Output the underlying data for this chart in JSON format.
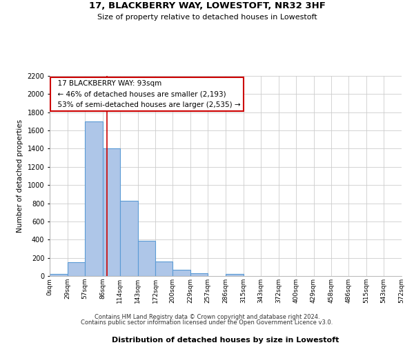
{
  "title_line1": "17, BLACKBERRY WAY, LOWESTOFT, NR32 3HF",
  "title_line2": "Size of property relative to detached houses in Lowestoft",
  "xlabel": "Distribution of detached houses by size in Lowestoft",
  "ylabel": "Number of detached properties",
  "annotation_line1": "17 BLACKBERRY WAY: 93sqm",
  "annotation_line2": "← 46% of detached houses are smaller (2,193)",
  "annotation_line3": "53% of semi-detached houses are larger (2,535) →",
  "property_size": 93,
  "bin_edges": [
    0,
    29,
    57,
    86,
    114,
    143,
    172,
    200,
    229,
    257,
    286,
    315,
    343,
    372,
    400,
    429,
    458,
    486,
    515,
    543,
    572
  ],
  "bar_heights": [
    20,
    155,
    1700,
    1400,
    830,
    385,
    160,
    65,
    30,
    0,
    25,
    0,
    0,
    0,
    0,
    0,
    0,
    0,
    0,
    0
  ],
  "bar_color": "#aec6e8",
  "bar_edge_color": "#5b9bd5",
  "vline_color": "#cc0000",
  "vline_x": 93,
  "ylim": [
    0,
    2200
  ],
  "yticks": [
    0,
    200,
    400,
    600,
    800,
    1000,
    1200,
    1400,
    1600,
    1800,
    2000,
    2200
  ],
  "xtick_labels": [
    "0sqm",
    "29sqm",
    "57sqm",
    "86sqm",
    "114sqm",
    "143sqm",
    "172sqm",
    "200sqm",
    "229sqm",
    "257sqm",
    "286sqm",
    "315sqm",
    "343sqm",
    "372sqm",
    "400sqm",
    "429sqm",
    "458sqm",
    "486sqm",
    "515sqm",
    "543sqm",
    "572sqm"
  ],
  "box_line_color": "#cc0000",
  "grid_color": "#cccccc",
  "background_color": "#ffffff",
  "footnote1": "Contains HM Land Registry data © Crown copyright and database right 2024.",
  "footnote2": "Contains public sector information licensed under the Open Government Licence v3.0."
}
